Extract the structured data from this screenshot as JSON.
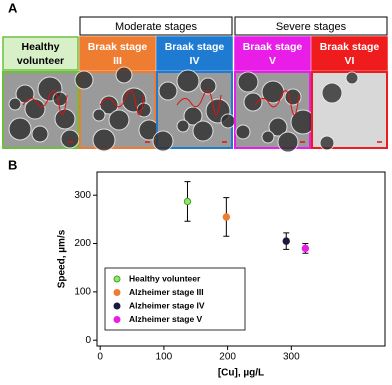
{
  "panel_a": {
    "label": "A",
    "groups": [
      {
        "title": "Moderate stages",
        "from": 1,
        "to": 2
      },
      {
        "title": "Severe stages",
        "from": 3,
        "to": 4
      }
    ],
    "samples": [
      {
        "lines": [
          "Healthy",
          "volunteer"
        ],
        "color": "#6fbf3f"
      },
      {
        "lines": [
          "Braak stage",
          "III"
        ],
        "color": "#ef7d31"
      },
      {
        "lines": [
          "Braak stage",
          "IV"
        ],
        "color": "#1f7bd1"
      },
      {
        "lines": [
          "Braak stage",
          "V"
        ],
        "color": "#e81ee8"
      },
      {
        "lines": [
          "Braak stage",
          "VI"
        ],
        "color": "#ee1c1c"
      }
    ]
  },
  "panel_b": {
    "label": "B"
  },
  "chart_data": {
    "type": "scatter",
    "x_label": "[Cu], µg/L",
    "y_label": "Speed, µm/s",
    "xlim": [
      -5,
      447
    ],
    "ylim": [
      -12,
      348
    ],
    "xticks": [
      0,
      100,
      200,
      300
    ],
    "yticks": [
      0,
      100,
      200,
      300
    ],
    "legend": "lower left",
    "series": [
      {
        "name": "Healthy volunteer",
        "color": "#8ee86a",
        "x": [
          137
        ],
        "values": [
          287
        ],
        "errors": [
          41
        ]
      },
      {
        "name": "Alzheimer stage III",
        "color": "#ef7d31",
        "x": [
          198
        ],
        "values": [
          255
        ],
        "errors": [
          40
        ]
      },
      {
        "name": "Alzheimer stage IV",
        "color": "#1a1a3a",
        "x": [
          292
        ],
        "values": [
          205
        ],
        "errors": [
          17
        ]
      },
      {
        "name": "Alzheimer stage V",
        "color": "#e81ee8",
        "x": [
          322
        ],
        "values": [
          190
        ],
        "errors": [
          10
        ]
      }
    ]
  }
}
